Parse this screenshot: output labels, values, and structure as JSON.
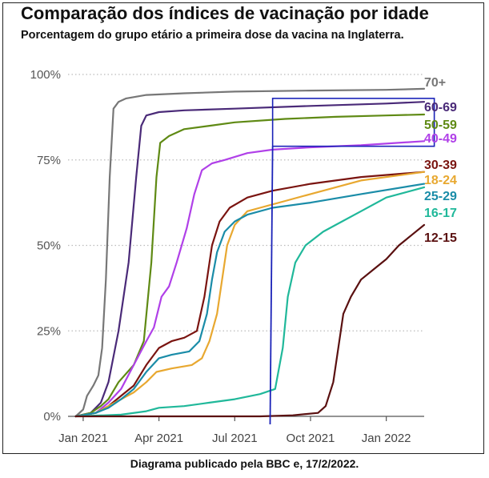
{
  "title": "Comparação dos índices de vacinação por idade",
  "subtitle": "Porcentagem do grupo etário a primeira dose da vacina na Inglaterra.",
  "caption": "Diagrama publicado pela BBC e, 17/2/2022.",
  "chart_data": {
    "type": "line",
    "x_unit": "months since Jan 2021",
    "xlim": [
      -0.6,
      13.5
    ],
    "ylim": [
      0,
      100
    ],
    "x_tick_labels": [
      {
        "x": 0,
        "label": "Jan 2021"
      },
      {
        "x": 3,
        "label": "Apr 2021"
      },
      {
        "x": 6,
        "label": "Jul 2021"
      },
      {
        "x": 9,
        "label": "Oct 2021"
      },
      {
        "x": 12,
        "label": "Jan 2022"
      }
    ],
    "y_ticks": [
      0,
      25,
      50,
      75,
      100
    ],
    "y_tick_labels": [
      "0%",
      "25%",
      "50%",
      "75%",
      "100%"
    ],
    "grid": "horizontal dotted",
    "highlight_box": {
      "x": [
        7.5,
        13.9
      ],
      "y": [
        79,
        93
      ],
      "color": "#1a22b8"
    },
    "vertical_marker": {
      "x": 7.4,
      "color": "#1a22b8"
    },
    "series": [
      {
        "name": "70+",
        "color": "#777777",
        "points": [
          [
            -0.3,
            0
          ],
          [
            0,
            2
          ],
          [
            0.15,
            6
          ],
          [
            0.4,
            9
          ],
          [
            0.6,
            12
          ],
          [
            0.75,
            20
          ],
          [
            0.9,
            40
          ],
          [
            1.05,
            70
          ],
          [
            1.2,
            90
          ],
          [
            1.4,
            92
          ],
          [
            1.7,
            93
          ],
          [
            2.5,
            94
          ],
          [
            4,
            94.5
          ],
          [
            6,
            95
          ],
          [
            9,
            95.3
          ],
          [
            12,
            95.5
          ],
          [
            13.5,
            95.8
          ]
        ]
      },
      {
        "name": "60-69",
        "color": "#4a2a78",
        "points": [
          [
            -0.3,
            0
          ],
          [
            0.3,
            1
          ],
          [
            0.7,
            4
          ],
          [
            1,
            10
          ],
          [
            1.4,
            25
          ],
          [
            1.8,
            45
          ],
          [
            2.1,
            70
          ],
          [
            2.3,
            85
          ],
          [
            2.5,
            88
          ],
          [
            3,
            89
          ],
          [
            4,
            89.5
          ],
          [
            6,
            90
          ],
          [
            9,
            90.8
          ],
          [
            12,
            91.5
          ],
          [
            13.5,
            92
          ]
        ]
      },
      {
        "name": "50-59",
        "color": "#5f8a14",
        "points": [
          [
            -0.3,
            0
          ],
          [
            0.3,
            1
          ],
          [
            0.7,
            3
          ],
          [
            1,
            5
          ],
          [
            1.4,
            10
          ],
          [
            2,
            15
          ],
          [
            2.4,
            22
          ],
          [
            2.7,
            45
          ],
          [
            2.9,
            70
          ],
          [
            3.05,
            80
          ],
          [
            3.4,
            82
          ],
          [
            4,
            84
          ],
          [
            5,
            85
          ],
          [
            6,
            86
          ],
          [
            8,
            87
          ],
          [
            10,
            87.6
          ],
          [
            12,
            88
          ],
          [
            13.5,
            88.3
          ]
        ]
      },
      {
        "name": "40-49",
        "color": "#b040e8",
        "points": [
          [
            -0.3,
            0
          ],
          [
            0.5,
            1
          ],
          [
            1,
            4
          ],
          [
            1.5,
            8
          ],
          [
            2,
            15
          ],
          [
            2.5,
            22
          ],
          [
            2.8,
            26
          ],
          [
            3.1,
            35
          ],
          [
            3.4,
            38
          ],
          [
            3.7,
            45
          ],
          [
            4.1,
            55
          ],
          [
            4.4,
            65
          ],
          [
            4.7,
            72
          ],
          [
            5.1,
            74
          ],
          [
            5.6,
            75
          ],
          [
            6.5,
            77
          ],
          [
            7.5,
            78
          ],
          [
            9,
            78.7
          ],
          [
            11,
            79.3
          ],
          [
            13.5,
            80.5
          ]
        ]
      },
      {
        "name": "30-39",
        "color": "#7a1410",
        "points": [
          [
            -0.3,
            0
          ],
          [
            0.5,
            1
          ],
          [
            1,
            3
          ],
          [
            1.5,
            6
          ],
          [
            2,
            9
          ],
          [
            2.5,
            15
          ],
          [
            3,
            20
          ],
          [
            3.5,
            22
          ],
          [
            4,
            23
          ],
          [
            4.5,
            25
          ],
          [
            4.8,
            35
          ],
          [
            5.1,
            50
          ],
          [
            5.4,
            57
          ],
          [
            5.8,
            61
          ],
          [
            6.5,
            64
          ],
          [
            7.5,
            66
          ],
          [
            9,
            68
          ],
          [
            11,
            70
          ],
          [
            13.5,
            71.5
          ]
        ]
      },
      {
        "name": "18-24",
        "color": "#e8a830",
        "points": [
          [
            -0.3,
            0
          ],
          [
            0.5,
            1
          ],
          [
            1,
            3
          ],
          [
            1.5,
            5
          ],
          [
            2,
            7
          ],
          [
            2.5,
            10
          ],
          [
            2.9,
            13
          ],
          [
            3.5,
            14
          ],
          [
            4.3,
            15
          ],
          [
            4.7,
            17
          ],
          [
            5,
            22
          ],
          [
            5.3,
            30
          ],
          [
            5.5,
            40
          ],
          [
            5.7,
            50
          ],
          [
            6,
            56
          ],
          [
            6.5,
            60
          ],
          [
            7,
            61
          ],
          [
            8,
            63
          ],
          [
            9,
            65
          ],
          [
            11,
            69
          ],
          [
            13.5,
            71.5
          ]
        ]
      },
      {
        "name": "25-29",
        "color": "#1a8ca8",
        "points": [
          [
            -0.3,
            0
          ],
          [
            0.5,
            1
          ],
          [
            1,
            2.5
          ],
          [
            1.5,
            5
          ],
          [
            2,
            8
          ],
          [
            2.5,
            13
          ],
          [
            3,
            17
          ],
          [
            3.5,
            18
          ],
          [
            4.2,
            19
          ],
          [
            4.6,
            22
          ],
          [
            4.9,
            30
          ],
          [
            5.1,
            40
          ],
          [
            5.3,
            48
          ],
          [
            5.6,
            54
          ],
          [
            6,
            57
          ],
          [
            6.5,
            59
          ],
          [
            7.5,
            61
          ],
          [
            9,
            62.5
          ],
          [
            11,
            65
          ],
          [
            13.5,
            68
          ]
        ]
      },
      {
        "name": "16-17",
        "color": "#20b89a",
        "points": [
          [
            -0.3,
            0
          ],
          [
            1.5,
            0.5
          ],
          [
            2.5,
            1.5
          ],
          [
            3,
            2.5
          ],
          [
            4,
            3
          ],
          [
            5,
            4
          ],
          [
            6,
            5
          ],
          [
            7,
            6.5
          ],
          [
            7.6,
            8
          ],
          [
            7.9,
            20
          ],
          [
            8.1,
            35
          ],
          [
            8.4,
            45
          ],
          [
            8.8,
            50
          ],
          [
            9.5,
            54
          ],
          [
            10,
            56
          ],
          [
            11,
            60
          ],
          [
            12,
            64
          ],
          [
            13.5,
            67
          ]
        ]
      },
      {
        "name": "12-15",
        "color": "#5a1010",
        "points": [
          [
            -0.3,
            0
          ],
          [
            7,
            0
          ],
          [
            8.3,
            0.3
          ],
          [
            9.3,
            1
          ],
          [
            9.6,
            3
          ],
          [
            9.9,
            10
          ],
          [
            10.1,
            20
          ],
          [
            10.3,
            30
          ],
          [
            10.6,
            35
          ],
          [
            11,
            40
          ],
          [
            11.5,
            43
          ],
          [
            12,
            46
          ],
          [
            12.5,
            50
          ],
          [
            13,
            53
          ],
          [
            13.5,
            56
          ]
        ]
      }
    ]
  }
}
